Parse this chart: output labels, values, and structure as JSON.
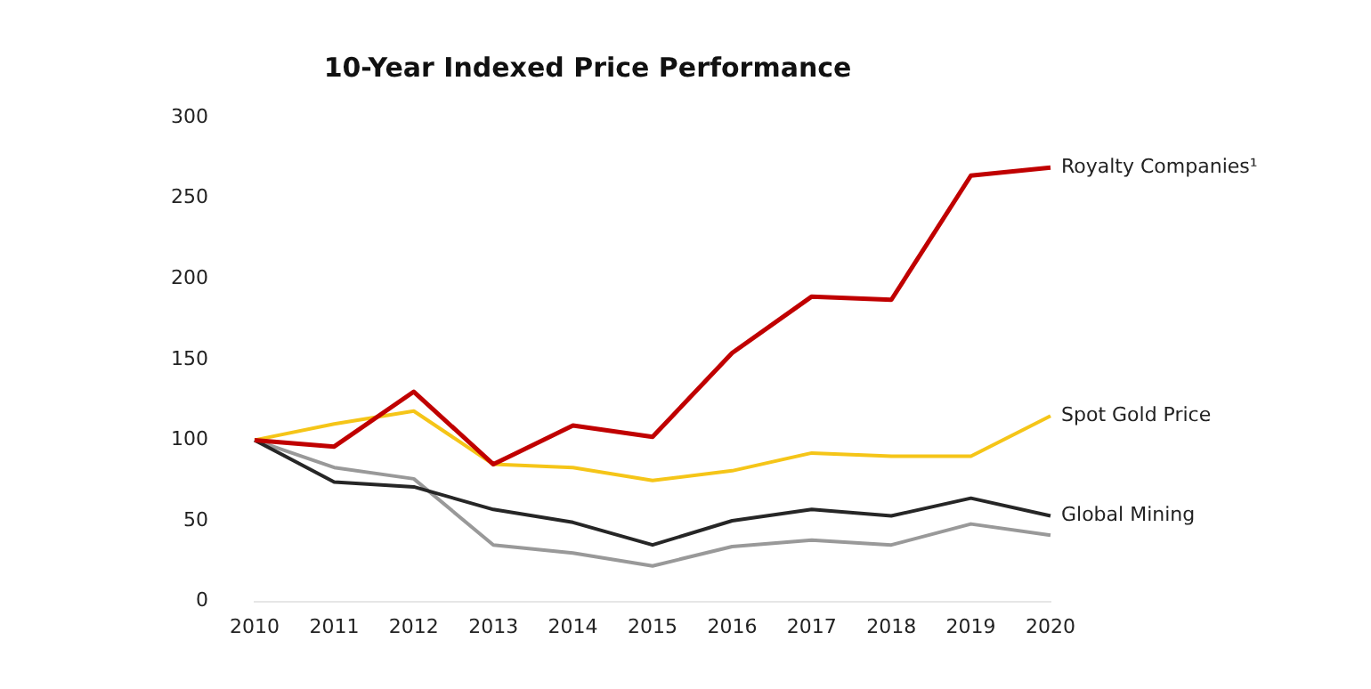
{
  "chart_data": {
    "type": "line",
    "title": "10-Year Indexed Price Performance",
    "categories": [
      "2010",
      "2011",
      "2012",
      "2013",
      "2014",
      "2015",
      "2016",
      "2017",
      "2018",
      "2019",
      "2020"
    ],
    "series": [
      {
        "name": "Royalty Companies¹",
        "color": "#c00000",
        "values": [
          100,
          96,
          130,
          85,
          109,
          102,
          154,
          189,
          187,
          264,
          269
        ]
      },
      {
        "name": "Spot Gold Price",
        "color": "#f5c518",
        "values": [
          100,
          110,
          118,
          85,
          83,
          75,
          81,
          92,
          90,
          90,
          115
        ]
      },
      {
        "name": "Global Mining",
        "color": "#262626",
        "values": [
          100,
          74,
          71,
          57,
          49,
          35,
          50,
          57,
          53,
          64,
          53
        ]
      },
      {
        "color": "#999999",
        "values": [
          100,
          83,
          76,
          35,
          30,
          22,
          34,
          38,
          35,
          48,
          41
        ]
      }
    ],
    "ylim": [
      0,
      300
    ],
    "yticks": [
      0,
      50,
      100,
      150,
      200,
      250,
      300
    ],
    "grid": false,
    "legend": false,
    "marker": "none"
  }
}
